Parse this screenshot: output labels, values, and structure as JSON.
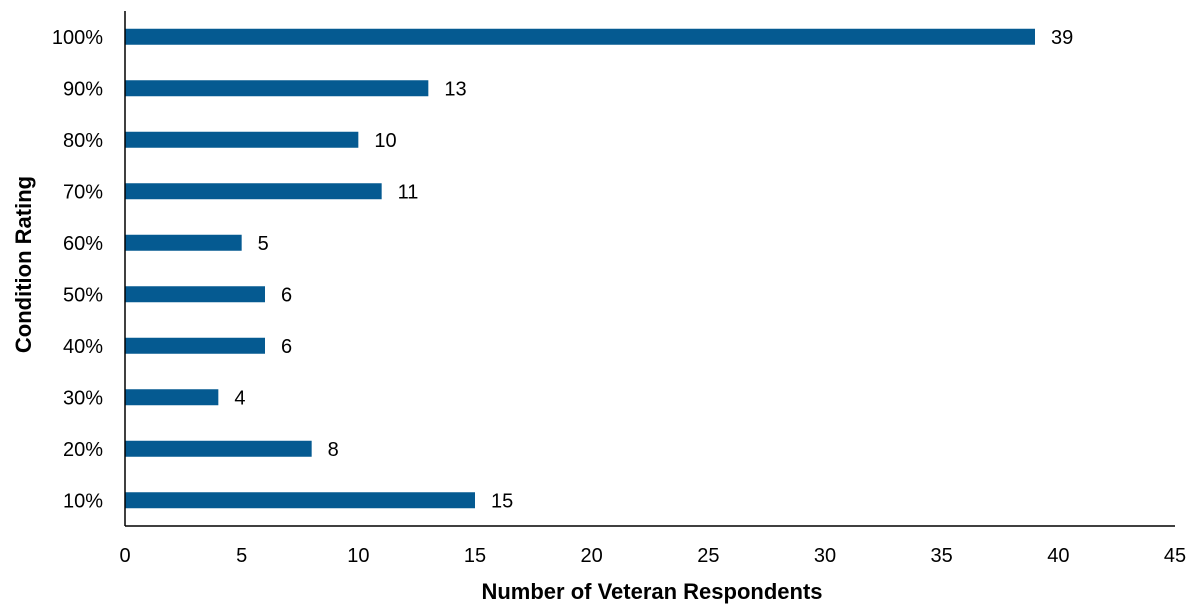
{
  "chart_data": {
    "type": "bar",
    "orientation": "horizontal",
    "categories": [
      "100%",
      "90%",
      "80%",
      "70%",
      "60%",
      "50%",
      "40%",
      "30%",
      "20%",
      "10%"
    ],
    "values": [
      39,
      13,
      10,
      11,
      5,
      6,
      6,
      4,
      8,
      15
    ],
    "xlabel": "Number of Veteran Respondents",
    "ylabel": "Condition Rating",
    "xlim": [
      0,
      45
    ],
    "xticks": [
      0,
      5,
      10,
      15,
      20,
      25,
      30,
      35,
      40,
      45
    ],
    "grid": false,
    "legend": "none",
    "bar_color": "#055A91"
  }
}
